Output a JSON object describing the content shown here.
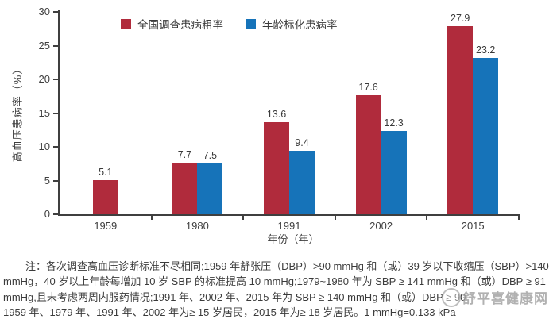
{
  "chart_data": {
    "type": "bar",
    "categories": [
      "1959",
      "1980",
      "1991",
      "2002",
      "2015"
    ],
    "series": [
      {
        "name": "全国调查患病粗率",
        "color": "#b02b3c",
        "values": [
          5.1,
          7.7,
          13.6,
          17.6,
          27.9
        ]
      },
      {
        "name": "年龄标化患病率",
        "color": "#1673b9",
        "values": [
          null,
          7.5,
          9.4,
          12.3,
          23.2
        ]
      }
    ],
    "xlabel": "年份（年）",
    "ylabel": "高血压患病率（%）",
    "ylim": [
      0,
      30
    ],
    "yticks": [
      0,
      5,
      10,
      15,
      20,
      25,
      30
    ],
    "grid": false,
    "legend_position": "top-center",
    "value_labels": true
  },
  "note": {
    "lines": [
      "注：各次调查高血压诊断标准不尽相同;1959 年舒张压（DBP）>90 mmHg 和（或）39 岁以下收缩压（SBP）>140",
      "mmHg，40 岁以上年龄每增加 10 岁 SBP 的标准提高 10 mmHg;1979~1980 年为 SBP ≥ 141 mmHg 和（或）DBP ≥ 91",
      "mmHg,且未考虑两周内服药情况;1991 年、2002 年、2015 年为 SBP ≥ 140 mmHg 和（或）DBP ≥ 90",
      "1959 年、1979 年、1991 年、2002 年为≥ 15 岁居民，2015 年为≥ 18 岁居民。1 mmHg=0.133 kPa"
    ]
  },
  "watermark": {
    "text": "舒平喜健康网"
  }
}
